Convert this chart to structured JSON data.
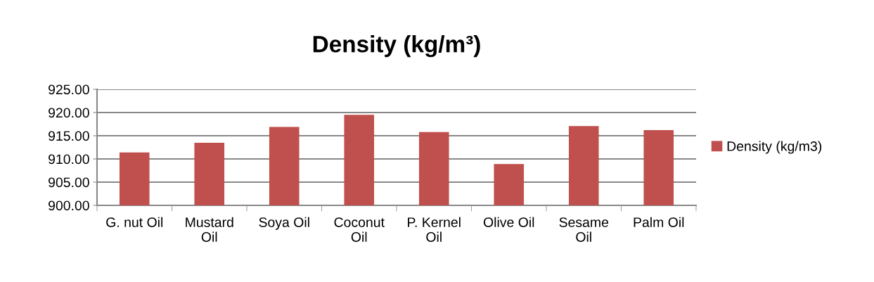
{
  "chart_data": {
    "type": "bar",
    "title": "Density (kg/m³)",
    "categories": [
      "G. nut Oil",
      "Mustard\nOil",
      "Soya Oil",
      "Coconut\nOil",
      "P. Kernel\nOil",
      "Olive Oil",
      "Sesame\nOil",
      "Palm Oil"
    ],
    "series": [
      {
        "name": "Density (kg/m3)",
        "color": "#c0504d",
        "values": [
          911.4,
          913.5,
          916.9,
          919.5,
          915.8,
          908.9,
          917.1,
          916.2
        ]
      }
    ],
    "ylim": [
      900,
      925
    ],
    "yticks": [
      {
        "value": 900,
        "label": "900.00"
      },
      {
        "value": 905,
        "label": "905.00"
      },
      {
        "value": 910,
        "label": "910.00"
      },
      {
        "value": 915,
        "label": "915.00"
      },
      {
        "value": 920,
        "label": "920.00"
      },
      {
        "value": 925,
        "label": "925.00"
      }
    ],
    "grid": "y",
    "legend": "right"
  }
}
